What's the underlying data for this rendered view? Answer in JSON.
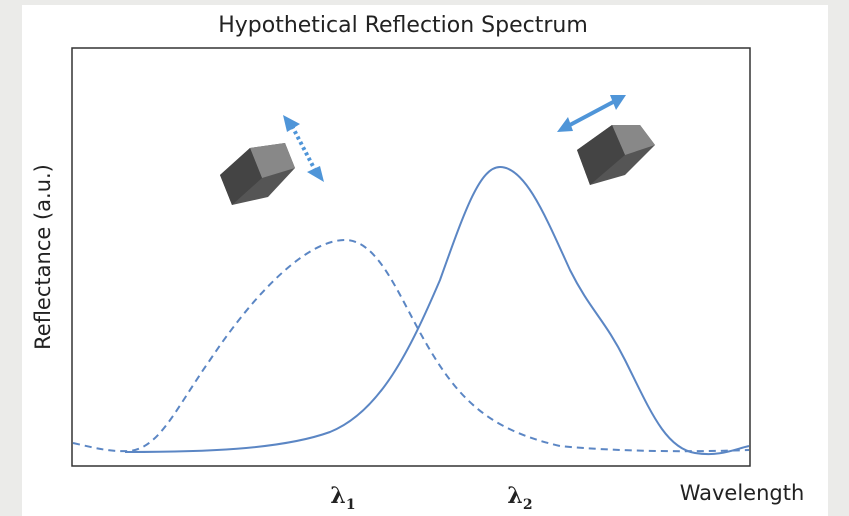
{
  "header": {
    "title": "Hypothetical Reflection Spectrum"
  },
  "axes": {
    "y_label": "Reflectance (a.u.)",
    "x_label": "Wavelength"
  },
  "peaks": [
    {
      "symbol": "λ",
      "subscript": "1"
    },
    {
      "symbol": "λ",
      "subscript": "2"
    }
  ]
}
